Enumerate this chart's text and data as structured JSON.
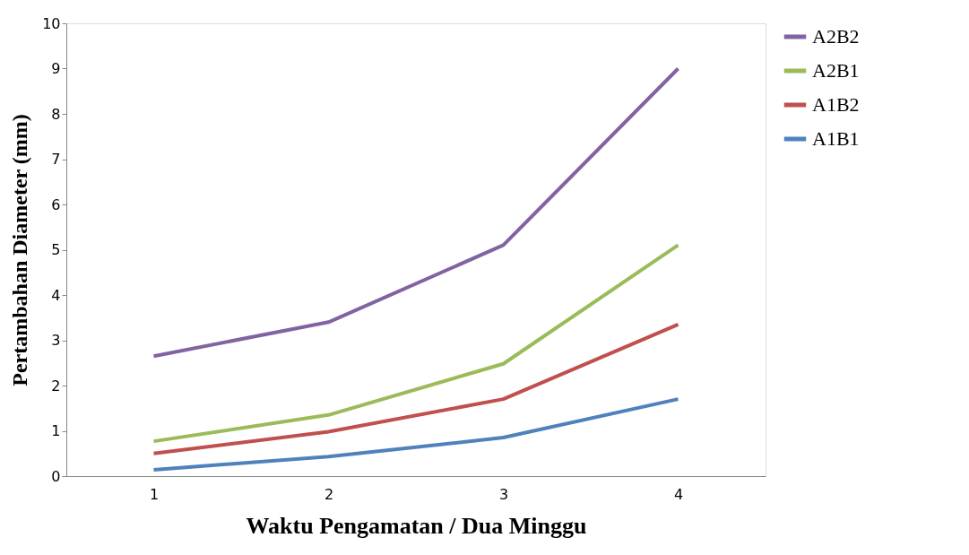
{
  "chart_data": {
    "type": "line",
    "xlabel": "Waktu Pengamatan / Dua Minggu",
    "ylabel": "Pertambahan Diameter (mm)",
    "categories": [
      "1",
      "2",
      "3",
      "4"
    ],
    "series": [
      {
        "name": "A2B2",
        "color": "#8064a2",
        "values": [
          2.65,
          3.4,
          5.1,
          9.0
        ]
      },
      {
        "name": "A2B1",
        "color": "#9bbb59",
        "values": [
          0.77,
          1.35,
          2.48,
          5.1
        ]
      },
      {
        "name": "A1B2",
        "color": "#c0504d",
        "values": [
          0.5,
          0.98,
          1.7,
          3.35
        ]
      },
      {
        "name": "A1B1",
        "color": "#4f81bd",
        "values": [
          0.14,
          0.43,
          0.85,
          1.7
        ]
      }
    ],
    "ylim": [
      0,
      10
    ],
    "yticks": [
      0,
      1,
      2,
      3,
      4,
      5,
      6,
      7,
      8,
      9,
      10
    ],
    "grid": false,
    "legend": "right",
    "marker": "none",
    "line_style": "solid"
  }
}
